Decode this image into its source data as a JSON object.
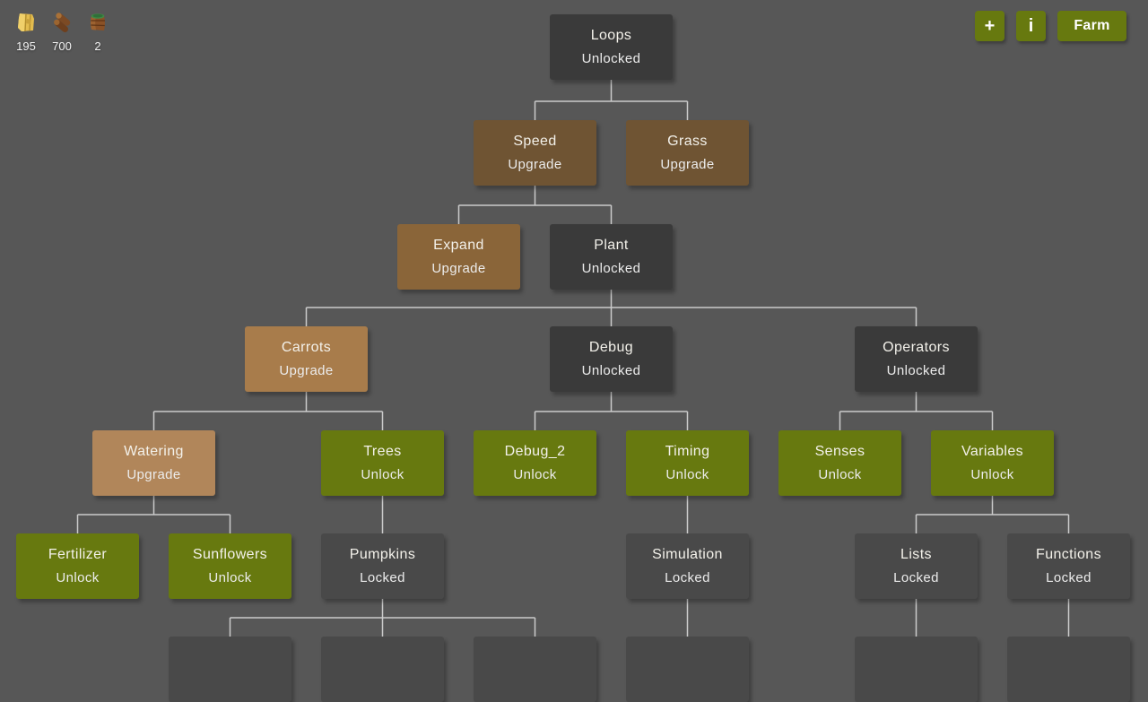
{
  "resources": [
    {
      "icon": "hay-icon",
      "count": "195"
    },
    {
      "icon": "wood-icon",
      "count": "700"
    },
    {
      "icon": "fertilizer-icon",
      "count": "2"
    }
  ],
  "toolbar": {
    "add_label": "+",
    "info_label": "i",
    "farm_label": "Farm"
  },
  "colors": {
    "bg": "#575757",
    "dark": "#3a3a3a",
    "locked": "#494949",
    "green": "#67790f",
    "brown1": "#6f5433",
    "brown2": "#8a6539",
    "brown3": "#a87c4b",
    "brown4": "#b1865a",
    "line": "#cbcbcb"
  },
  "tree": {
    "nodes": [
      {
        "id": "loops",
        "label": "Loops",
        "status": "Unlocked",
        "variant": "unlocked",
        "row": 0,
        "col": 7
      },
      {
        "id": "speed",
        "label": "Speed",
        "status": "Upgrade",
        "variant": "upgrade_t1",
        "row": 1,
        "col": 6
      },
      {
        "id": "grass",
        "label": "Grass",
        "status": "Upgrade",
        "variant": "upgrade_t1",
        "row": 1,
        "col": 8
      },
      {
        "id": "expand",
        "label": "Expand",
        "status": "Upgrade",
        "variant": "upgrade_t2",
        "row": 2,
        "col": 5
      },
      {
        "id": "plant",
        "label": "Plant",
        "status": "Unlocked",
        "variant": "unlocked",
        "row": 2,
        "col": 7
      },
      {
        "id": "carrots",
        "label": "Carrots",
        "status": "Upgrade",
        "variant": "upgrade_t3",
        "row": 3,
        "col": 3
      },
      {
        "id": "debug",
        "label": "Debug",
        "status": "Unlocked",
        "variant": "unlocked",
        "row": 3,
        "col": 7
      },
      {
        "id": "operators",
        "label": "Operators",
        "status": "Unlocked",
        "variant": "unlocked",
        "row": 3,
        "col": 11
      },
      {
        "id": "watering",
        "label": "Watering",
        "status": "Upgrade",
        "variant": "upgrade_t4",
        "row": 4,
        "col": 1
      },
      {
        "id": "trees",
        "label": "Trees",
        "status": "Unlock",
        "variant": "unlock",
        "row": 4,
        "col": 4
      },
      {
        "id": "debug_2",
        "label": "Debug_2",
        "status": "Unlock",
        "variant": "unlock",
        "row": 4,
        "col": 6
      },
      {
        "id": "timing",
        "label": "Timing",
        "status": "Unlock",
        "variant": "unlock",
        "row": 4,
        "col": 8
      },
      {
        "id": "senses",
        "label": "Senses",
        "status": "Unlock",
        "variant": "unlock",
        "row": 4,
        "col": 10
      },
      {
        "id": "variables",
        "label": "Variables",
        "status": "Unlock",
        "variant": "unlock",
        "row": 4,
        "col": 12
      },
      {
        "id": "fertilizer",
        "label": "Fertilizer",
        "status": "Unlock",
        "variant": "unlock",
        "row": 5,
        "col": 0
      },
      {
        "id": "sunflowers",
        "label": "Sunflowers",
        "status": "Unlock",
        "variant": "unlock",
        "row": 5,
        "col": 2
      },
      {
        "id": "pumpkins",
        "label": "Pumpkins",
        "status": "Locked",
        "variant": "locked",
        "row": 5,
        "col": 4
      },
      {
        "id": "simulation",
        "label": "Simulation",
        "status": "Locked",
        "variant": "locked",
        "row": 5,
        "col": 8
      },
      {
        "id": "lists",
        "label": "Lists",
        "status": "Locked",
        "variant": "locked",
        "row": 5,
        "col": 11
      },
      {
        "id": "functions",
        "label": "Functions",
        "status": "Locked",
        "variant": "locked",
        "row": 5,
        "col": 13
      },
      {
        "id": "cutoff_1",
        "label": "",
        "status": "",
        "variant": "locked",
        "row": 6,
        "col": 2
      },
      {
        "id": "cutoff_2",
        "label": "",
        "status": "",
        "variant": "locked",
        "row": 6,
        "col": 4
      },
      {
        "id": "cutoff_3",
        "label": "",
        "status": "",
        "variant": "locked",
        "row": 6,
        "col": 6
      },
      {
        "id": "cutoff_4",
        "label": "",
        "status": "",
        "variant": "locked",
        "row": 6,
        "col": 8
      },
      {
        "id": "cutoff_5",
        "label": "",
        "status": "",
        "variant": "locked",
        "row": 6,
        "col": 11
      },
      {
        "id": "cutoff_6",
        "label": "",
        "status": "",
        "variant": "locked",
        "row": 6,
        "col": 13
      }
    ],
    "edges": [
      {
        "parent": "loops",
        "children": [
          "speed",
          "grass"
        ]
      },
      {
        "parent": "speed",
        "children": [
          "expand",
          "plant"
        ]
      },
      {
        "parent": "plant",
        "children": [
          "carrots",
          "debug",
          "operators"
        ]
      },
      {
        "parent": "carrots",
        "children": [
          "watering",
          "trees"
        ]
      },
      {
        "parent": "debug",
        "children": [
          "debug_2",
          "timing"
        ]
      },
      {
        "parent": "operators",
        "children": [
          "senses",
          "variables"
        ]
      },
      {
        "parent": "watering",
        "children": [
          "fertilizer",
          "sunflowers"
        ]
      },
      {
        "parent": "trees",
        "children": [
          "pumpkins"
        ]
      },
      {
        "parent": "timing",
        "children": [
          "simulation"
        ]
      },
      {
        "parent": "variables",
        "children": [
          "lists",
          "functions"
        ]
      },
      {
        "parent": "pumpkins",
        "children": [
          "cutoff_1",
          "cutoff_2",
          "cutoff_3"
        ]
      },
      {
        "parent": "simulation",
        "children": [
          "cutoff_4"
        ]
      },
      {
        "parent": "lists",
        "children": [
          "cutoff_5"
        ]
      },
      {
        "parent": "functions",
        "children": [
          "cutoff_6"
        ]
      }
    ]
  }
}
